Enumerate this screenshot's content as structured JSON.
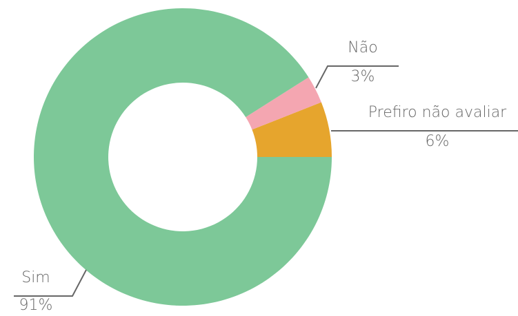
{
  "chart_data": {
    "type": "pie",
    "categories": [
      "Prefiro não avaliar",
      "Não",
      "Sim"
    ],
    "values": [
      6,
      3,
      91
    ],
    "value_labels": [
      "6%",
      "3%",
      "91%"
    ],
    "colors": [
      "#e6a52d",
      "#f4a6b1",
      "#7dc898"
    ]
  }
}
